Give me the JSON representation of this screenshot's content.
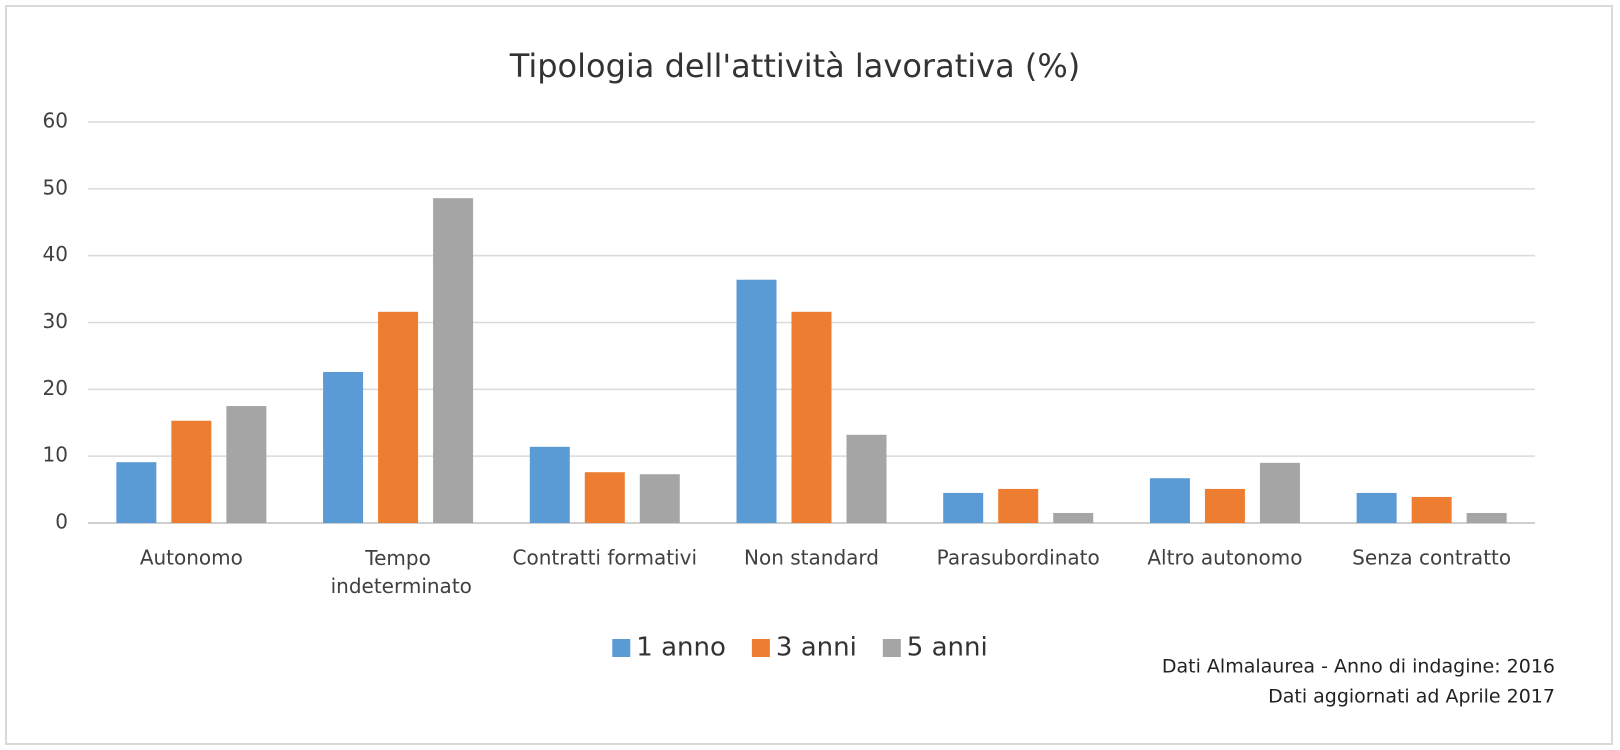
{
  "chart_data": {
    "type": "bar",
    "title": "Tipologia dell'attività lavorativa (%)",
    "categories": [
      "Autonomo",
      "Tempo indeterminato",
      "Contratti formativi",
      "Non standard",
      "Parasubordinato",
      "Altro autonomo",
      "Senza contratto"
    ],
    "series": [
      {
        "name": "1 anno",
        "color": "#5b9bd5",
        "values": [
          9.1,
          22.6,
          11.4,
          36.4,
          4.5,
          6.7,
          4.5
        ]
      },
      {
        "name": "3 anni",
        "color": "#ed7d31",
        "values": [
          15.3,
          31.6,
          7.6,
          31.6,
          5.1,
          5.1,
          3.9
        ]
      },
      {
        "name": "5 anni",
        "color": "#a5a5a5",
        "values": [
          17.5,
          48.6,
          7.3,
          13.2,
          1.5,
          9.0,
          1.5
        ]
      }
    ],
    "ylim": [
      0,
      60
    ],
    "yticks": [
      0,
      10,
      20,
      30,
      40,
      50,
      60
    ],
    "grid": true,
    "legend": "bottom",
    "notes": [
      "Dati Almalaurea - Anno di indagine: 2016",
      "Dati aggiornati ad Aprile 2017"
    ]
  }
}
